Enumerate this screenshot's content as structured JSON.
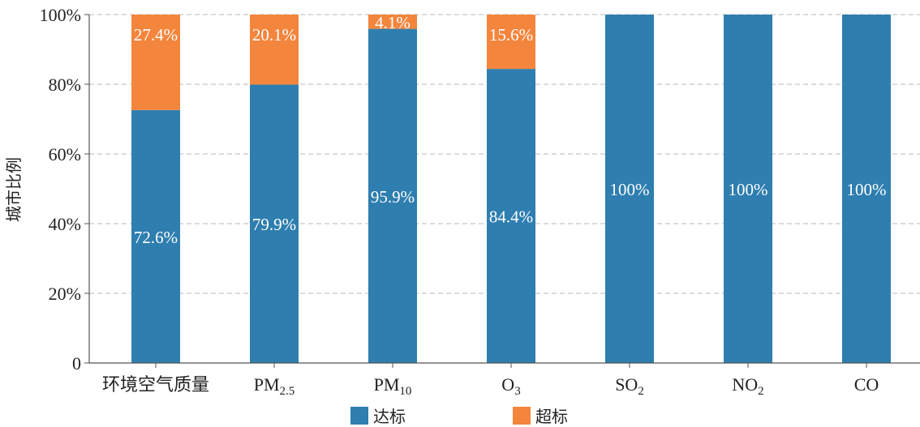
{
  "colors": {
    "pass": "#2e7eaf",
    "fail": "#f4853c",
    "grid": "#b8b8b8",
    "axis": "#555555"
  },
  "chart_data": {
    "type": "bar",
    "stacked": true,
    "ylabel": "城市比例",
    "ylim": [
      0,
      100
    ],
    "yticks": [
      {
        "value": 0,
        "label": "0"
      },
      {
        "value": 20,
        "label": "20%"
      },
      {
        "value": 40,
        "label": "40%"
      },
      {
        "value": 60,
        "label": "60%"
      },
      {
        "value": 80,
        "label": "80%"
      },
      {
        "value": 100,
        "label": "100%"
      }
    ],
    "categories": [
      {
        "base": "环境空气质量",
        "sub": ""
      },
      {
        "base": "PM",
        "sub": "2.5"
      },
      {
        "base": "PM",
        "sub": "10"
      },
      {
        "base": "O",
        "sub": "3"
      },
      {
        "base": "SO",
        "sub": "2"
      },
      {
        "base": "NO",
        "sub": "2"
      },
      {
        "base": "CO",
        "sub": ""
      }
    ],
    "series": [
      {
        "name": "达标",
        "color": "#2e7eaf",
        "values": [
          72.6,
          79.9,
          95.9,
          84.4,
          100,
          100,
          100
        ],
        "labels": [
          "72.6%",
          "79.9%",
          "95.9%",
          "84.4%",
          "100%",
          "100%",
          "100%"
        ]
      },
      {
        "name": "超标",
        "color": "#f4853c",
        "values": [
          27.4,
          20.1,
          4.1,
          15.6,
          0,
          0,
          0
        ],
        "labels": [
          "27.4%",
          "20.1%",
          "4.1%",
          "15.6%",
          "",
          "",
          ""
        ]
      }
    ],
    "grid": true,
    "legend": "bottom"
  }
}
